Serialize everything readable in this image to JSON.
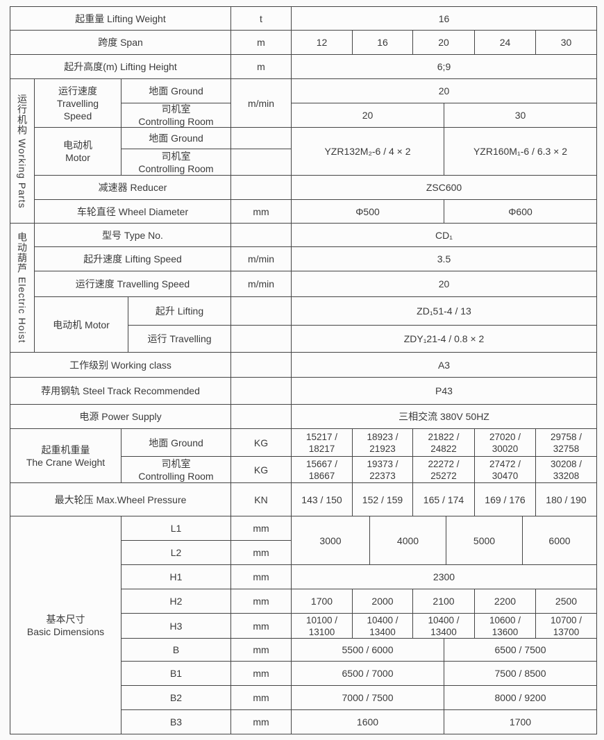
{
  "lifting_weight": {
    "label": "起重量  Lifting Weight",
    "unit": "t",
    "value": "16"
  },
  "span": {
    "label": "跨度  Span",
    "unit": "m",
    "values": [
      "12",
      "16",
      "20",
      "24",
      "30"
    ]
  },
  "lifting_height": {
    "label": "起升高度(m)  Lifting Height",
    "unit": "m",
    "value": "6;9"
  },
  "working_parts": {
    "title": "运行机构  Working Parts",
    "travelling_speed": {
      "label": "运行速度\nTravelling\nSpeed",
      "ground_label": "地面 Ground",
      "controlling_label": "司机室\nControlling Room",
      "unit": "m/min",
      "ground_value": "20",
      "controlling_values": [
        "20",
        "30"
      ]
    },
    "motor": {
      "label": "电动机\nMotor",
      "ground_label": "地面 Ground",
      "controlling_label": "司机室\nControlling Room",
      "values": [
        "YZR132M₂-6 / 4 × 2",
        "YZR160M₁-6 / 6.3 × 2"
      ]
    },
    "reducer": {
      "label": "减速器 Reducer",
      "value": "ZSC600"
    },
    "wheel_diameter": {
      "label": "车轮直径 Wheel Diameter",
      "unit": "mm",
      "values": [
        "Φ500",
        "Φ600"
      ]
    }
  },
  "electric_hoist": {
    "title": "电动葫芦  Electric Hoist",
    "type_no": {
      "label": "型号 Type No.",
      "value": "CD₁"
    },
    "lifting_speed": {
      "label": "起升速度 Lifting Speed",
      "unit": "m/min",
      "value": "3.5"
    },
    "travelling_speed": {
      "label": "运行速度 Travelling Speed",
      "unit": "m/min",
      "value": "20"
    },
    "motor": {
      "label": "电动机 Motor",
      "lifting_label": "起升  Lifting",
      "lifting_value": "ZD₁51-4 / 13",
      "travelling_label": "运行  Travelling",
      "travelling_value": "ZDY₁21-4 / 0.8 × 2"
    }
  },
  "working_class": {
    "label": "工作级别 Working class",
    "value": "A3"
  },
  "steel_track": {
    "label": "荐用钢轨 Steel Track Recommended",
    "value": "P43"
  },
  "power_supply": {
    "label": "电源 Power Supply",
    "value": "三相交流 380V  50HZ"
  },
  "crane_weight": {
    "label": "起重机重量\nThe Crane Weight",
    "ground_label": "地面 Ground",
    "controlling_label": "司机室\nControlling Room",
    "unit": "KG",
    "ground_values": [
      "15217 /\n18217",
      "18923 /\n21923",
      "21822 /\n24822",
      "27020 /\n30020",
      "29758 /\n32758"
    ],
    "controlling_values": [
      "15667 /\n18667",
      "19373 /\n22373",
      "22272 /\n25272",
      "27472 /\n30470",
      "30208 /\n33208"
    ]
  },
  "max_wheel_pressure": {
    "label": "最大轮压 Max.Wheel Pressure",
    "unit": "KN",
    "values": [
      "143 / 150",
      "152 / 159",
      "165 / 174",
      "169 / 176",
      "180 / 190"
    ]
  },
  "basic_dimensions": {
    "label": "基本尺寸\nBasic Dimensions",
    "L1": {
      "label": "L1",
      "unit": "mm"
    },
    "L2": {
      "label": "L2",
      "unit": "mm"
    },
    "L_values": [
      "3000",
      "4000",
      "5000",
      "6000"
    ],
    "H1": {
      "label": "H1",
      "unit": "mm",
      "value": "2300"
    },
    "H2": {
      "label": "H2",
      "unit": "mm",
      "values": [
        "1700",
        "2000",
        "2100",
        "2200",
        "2500"
      ]
    },
    "H3": {
      "label": "H3",
      "unit": "mm",
      "values": [
        "10100 /\n13100",
        "10400 /\n13400",
        "10400 /\n13400",
        "10600 /\n13600",
        "10700 /\n13700"
      ]
    },
    "B": {
      "label": "B",
      "unit": "mm",
      "values": [
        "5500 / 6000",
        "6500 / 7500"
      ]
    },
    "B1": {
      "label": "B1",
      "unit": "mm",
      "values": [
        "6500 / 7000",
        "7500 / 8500"
      ]
    },
    "B2": {
      "label": "B2",
      "unit": "mm",
      "values": [
        "7000 / 7500",
        "8000 / 9200"
      ]
    },
    "B3": {
      "label": "B3",
      "unit": "mm",
      "values": [
        "1600",
        "1700"
      ]
    }
  }
}
